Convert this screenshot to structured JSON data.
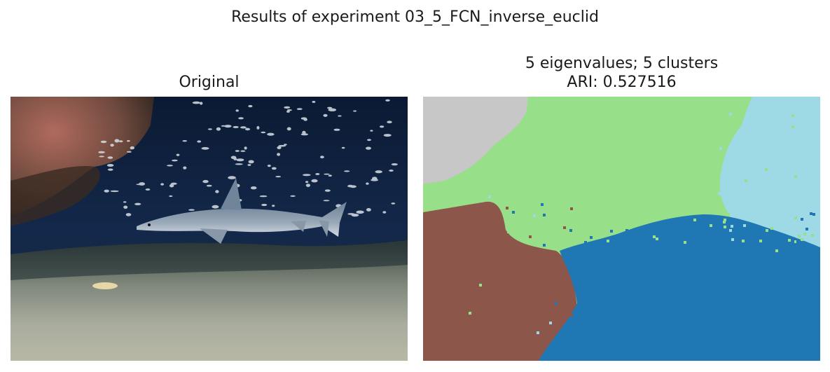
{
  "figure": {
    "suptitle": "Results of experiment 03_5_FCN_inverse_euclid"
  },
  "left_panel": {
    "title": "Original",
    "image_desc": "shark-underwater-photo"
  },
  "right_panel": {
    "title_line1": "5 eigenvalues; 5 clusters",
    "title_line2": "ARI: 0.527516",
    "cluster_colors": {
      "cluster_gray": "#c7c7c7",
      "cluster_green": "#98df8a",
      "cluster_lightblue": "#9edae5",
      "cluster_brown": "#8c564b",
      "cluster_blue": "#1f77b4"
    }
  }
}
